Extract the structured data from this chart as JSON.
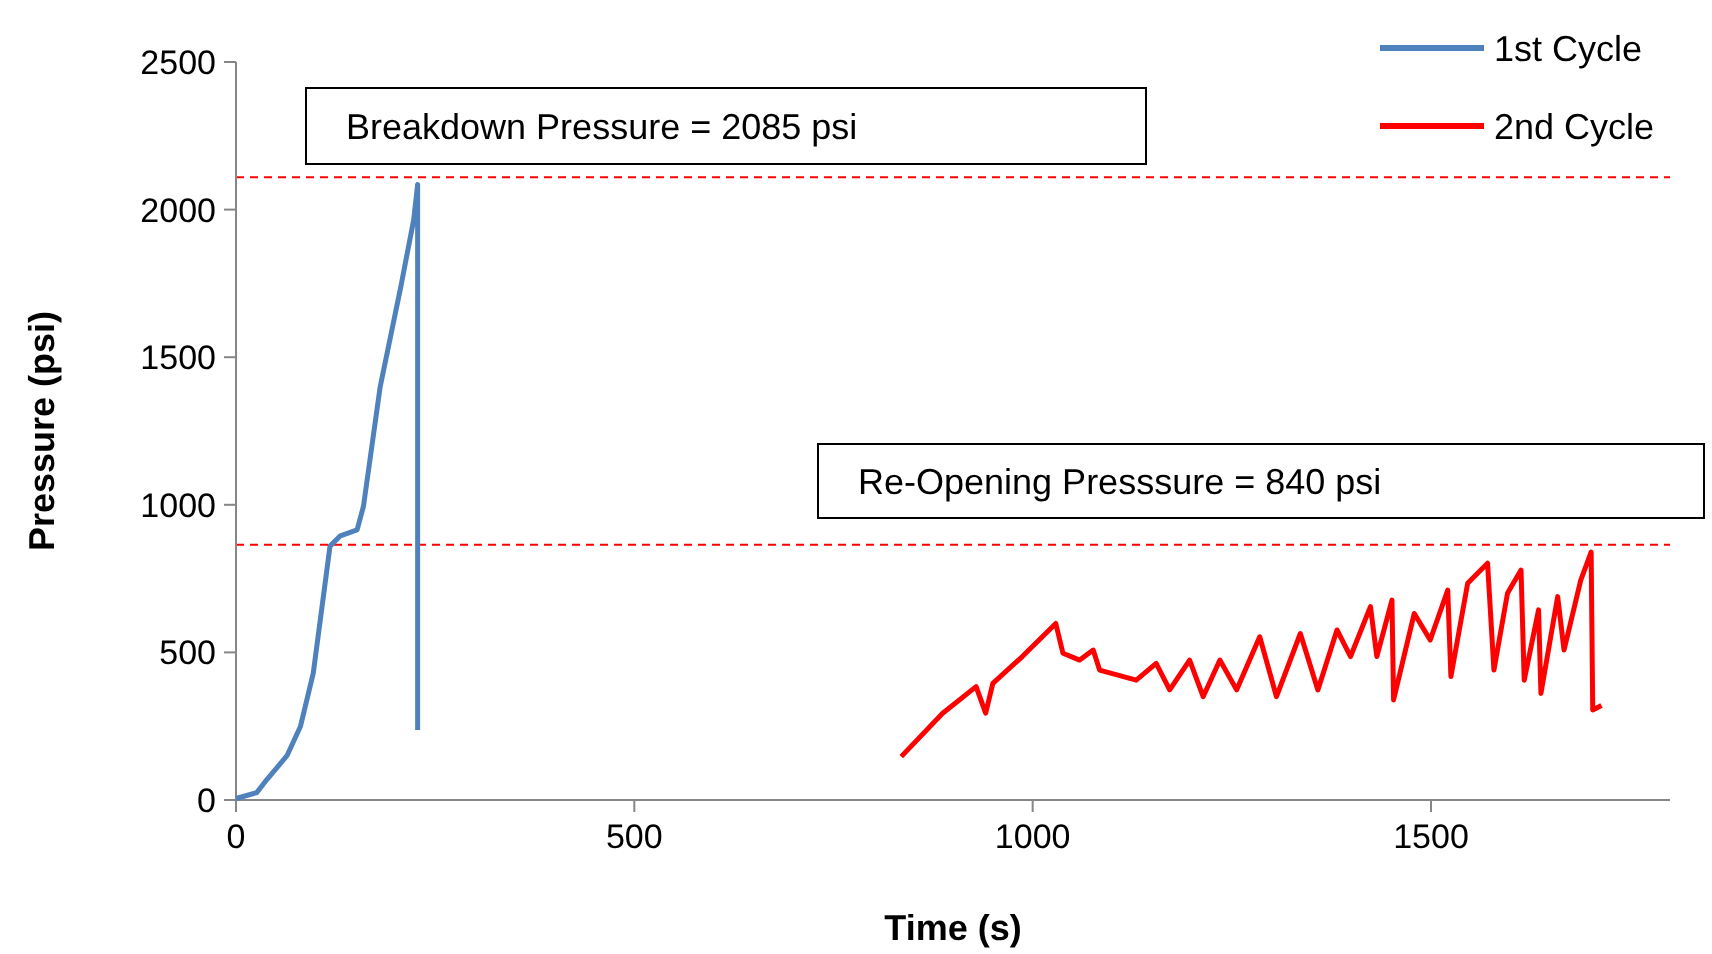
{
  "chart_data": {
    "type": "line",
    "xlabel": "Time (s)",
    "ylabel": "Pressure (psi)",
    "xlim": [
      0,
      1800
    ],
    "ylim": [
      0,
      2500
    ],
    "xticks": [
      0,
      500,
      1000,
      1500
    ],
    "yticks": [
      0,
      500,
      1000,
      1500,
      2000,
      2500
    ],
    "grid": false,
    "legend": "top right",
    "marker": "none",
    "line_style": "solid",
    "annotations": [
      "Breakdown Pressure = 2085 psi",
      "Re-Opening Presssure = 840 psi"
    ],
    "ref_lines": [
      {
        "axis": "y",
        "value": 2110,
        "color": "#ff0000",
        "line_style": "dashed"
      },
      {
        "axis": "y",
        "value": 865,
        "color": "#ff0000",
        "line_style": "dashed"
      }
    ],
    "series": [
      {
        "name": "1st Cycle",
        "color": "#4f81bd",
        "x": [
          0,
          26,
          39,
          64,
          81,
          97,
          118,
          131,
          152,
          160,
          181,
          207,
          223,
          228,
          228
        ],
        "values": [
          5,
          25,
          70,
          150,
          250,
          430,
          860,
          895,
          915,
          995,
          1400,
          1740,
          1965,
          2085,
          237
        ]
      },
      {
        "name": "2nd Cycle",
        "color": "#ff0000",
        "x": [
          835,
          887,
          929,
          941,
          950,
          987,
          1029,
          1038,
          1059,
          1076,
          1084,
          1130,
          1155,
          1172,
          1197,
          1214,
          1235,
          1256,
          1285,
          1306,
          1336,
          1358,
          1382,
          1399,
          1424,
          1432,
          1451,
          1453,
          1479,
          1499,
          1521,
          1525,
          1546,
          1571,
          1579,
          1596,
          1613,
          1617,
          1635,
          1638,
          1659,
          1667,
          1688,
          1701,
          1703,
          1714
        ],
        "values": [
          147,
          294,
          384,
          294,
          395,
          486,
          598,
          497,
          474,
          508,
          440,
          406,
          463,
          373,
          474,
          350,
          474,
          373,
          553,
          350,
          564,
          373,
          576,
          486,
          655,
          486,
          677,
          339,
          632,
          542,
          711,
          418,
          734,
          802,
          440,
          700,
          779,
          406,
          644,
          361,
          689,
          508,
          745,
          840,
          305,
          320
        ]
      }
    ]
  }
}
